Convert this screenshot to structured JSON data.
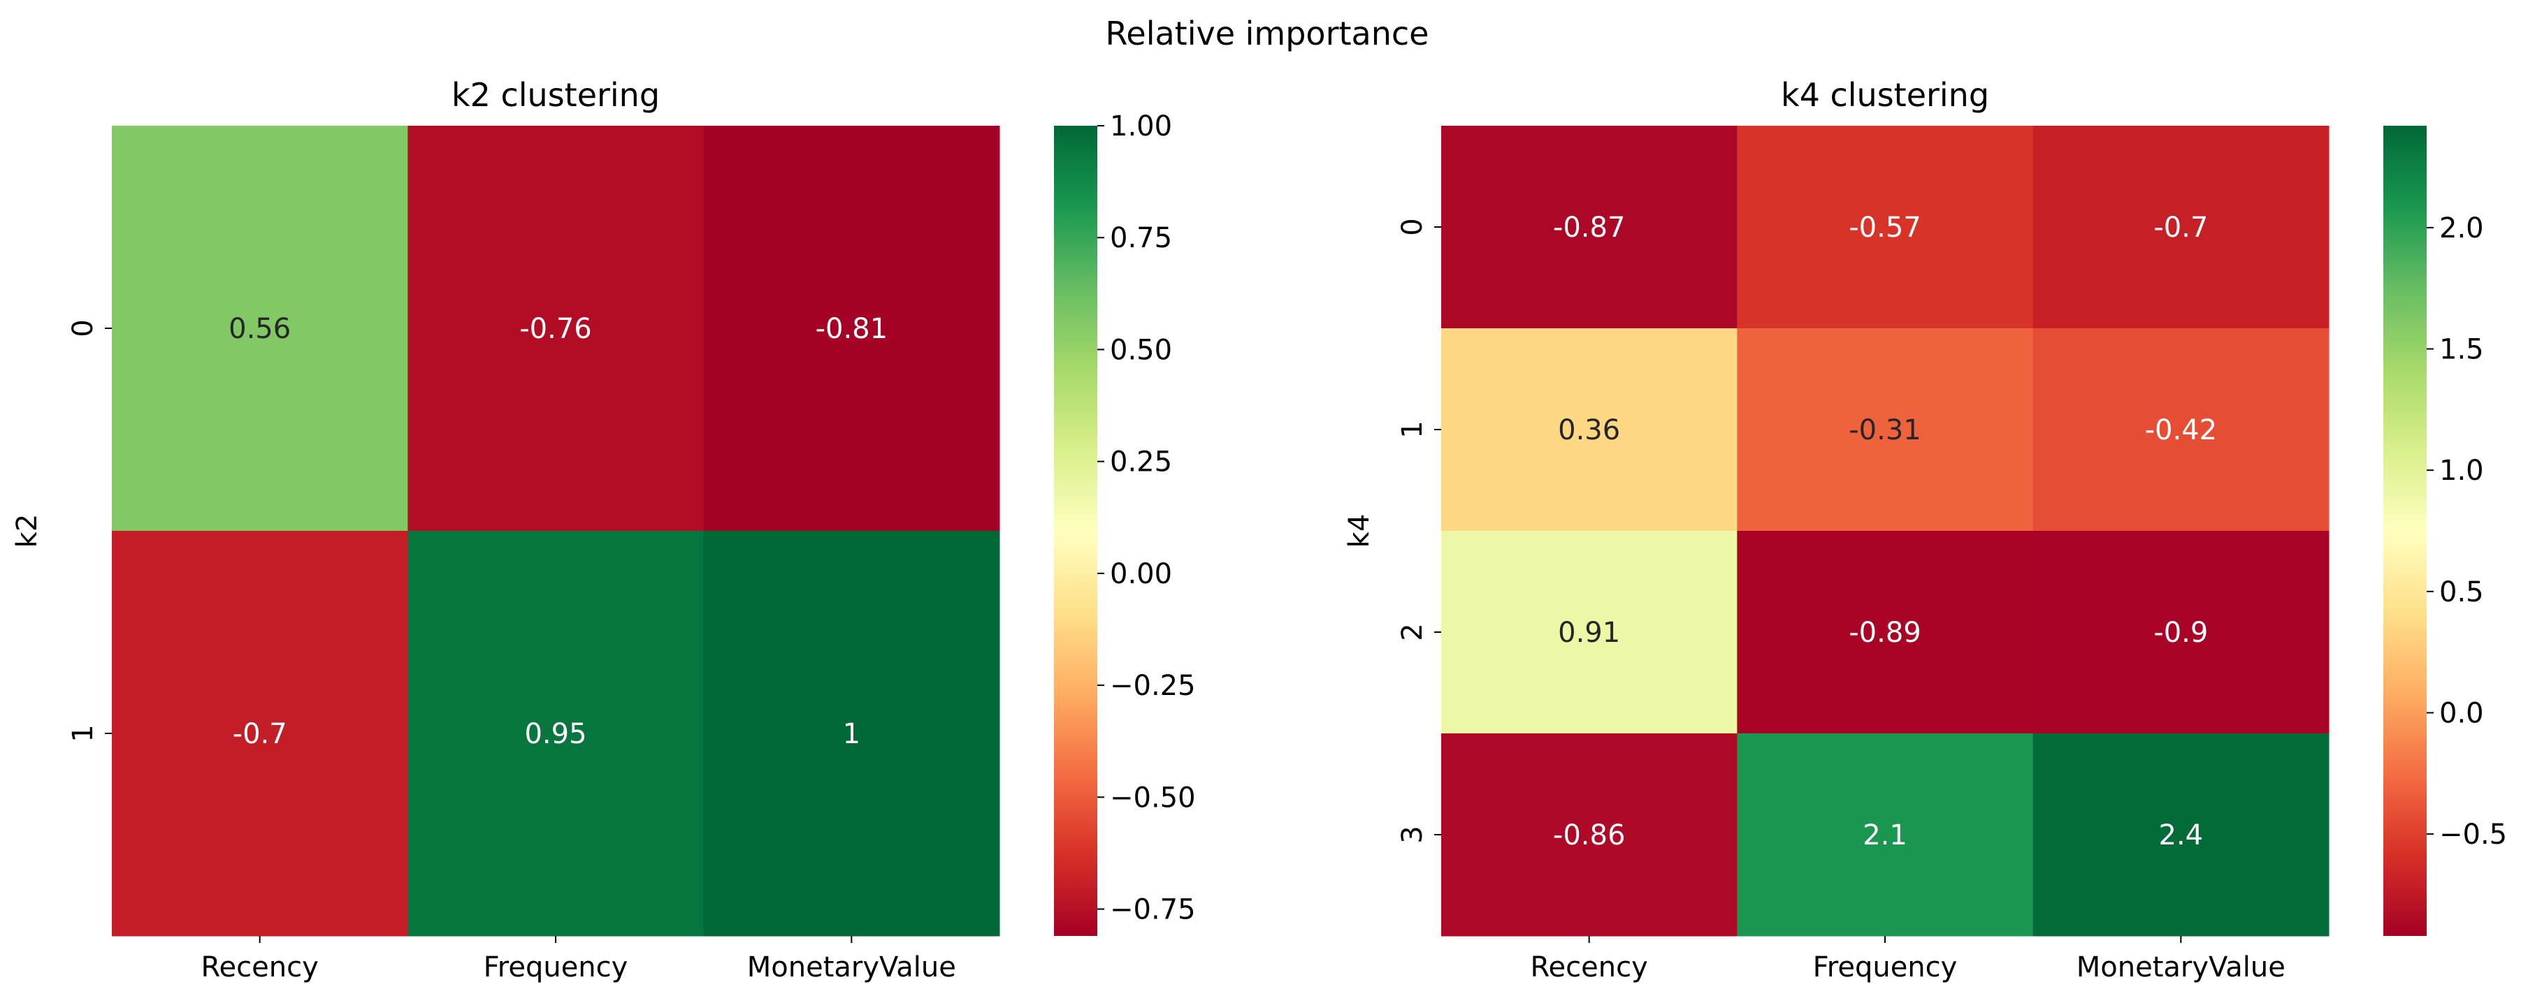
{
  "figure": {
    "title": "Relative importance"
  },
  "chart_data": [
    {
      "type": "heatmap",
      "title": "k2 clustering",
      "xlabel": "",
      "ylabel": "k2",
      "x_categories": [
        "Recency",
        "Frequency",
        "MonetaryValue"
      ],
      "y_categories": [
        "0",
        "1"
      ],
      "values": [
        [
          0.56,
          -0.76,
          -0.81
        ],
        [
          -0.7,
          0.95,
          1.0
        ]
      ],
      "annotations": [
        [
          "0.56",
          "-0.76",
          "-0.81"
        ],
        [
          "-0.7",
          "0.95",
          "1"
        ]
      ],
      "colormap": "RdYlGn",
      "colorbar": {
        "vmin": -0.81,
        "vmax": 1.0,
        "ticks": [
          -0.75,
          -0.5,
          -0.25,
          0.0,
          0.25,
          0.5,
          0.75,
          1.0
        ],
        "tick_labels": [
          "−0.75",
          "−0.50",
          "−0.25",
          "0.00",
          "0.25",
          "0.50",
          "0.75",
          "1.00"
        ]
      }
    },
    {
      "type": "heatmap",
      "title": "k4 clustering",
      "xlabel": "",
      "ylabel": "k4",
      "x_categories": [
        "Recency",
        "Frequency",
        "MonetaryValue"
      ],
      "y_categories": [
        "0",
        "1",
        "2",
        "3"
      ],
      "values": [
        [
          -0.87,
          -0.57,
          -0.7
        ],
        [
          0.36,
          -0.31,
          -0.42
        ],
        [
          0.91,
          -0.89,
          -0.9
        ],
        [
          -0.86,
          2.1,
          2.4
        ]
      ],
      "annotations": [
        [
          "-0.87",
          "-0.57",
          "-0.7"
        ],
        [
          "0.36",
          "-0.31",
          "-0.42"
        ],
        [
          "0.91",
          "-0.89",
          "-0.9"
        ],
        [
          "-0.86",
          "2.1",
          "2.4"
        ]
      ],
      "colormap": "RdYlGn",
      "colorbar": {
        "vmin": -0.92,
        "vmax": 2.42,
        "ticks": [
          -0.5,
          0.0,
          0.5,
          1.0,
          1.5,
          2.0
        ],
        "tick_labels": [
          "−0.5",
          "0.0",
          "0.5",
          "1.0",
          "1.5",
          "2.0"
        ]
      }
    }
  ]
}
